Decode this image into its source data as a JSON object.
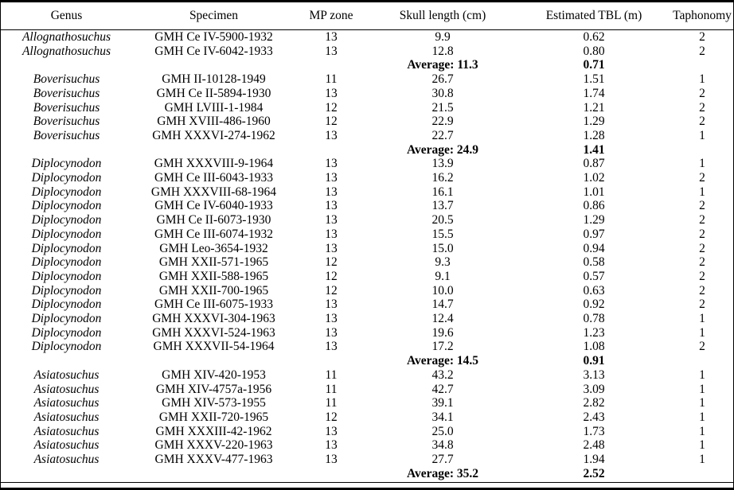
{
  "table": {
    "columns": [
      {
        "label": "Genus"
      },
      {
        "label": "Specimen"
      },
      {
        "label": "MP zone"
      },
      {
        "label": "Skull length (cm)"
      },
      {
        "label": "Estimated TBL (m)"
      },
      {
        "label": "Taphonomy"
      }
    ],
    "sections": [
      {
        "genus": "Allognathosuchus",
        "rows": [
          {
            "specimen": "GMH Ce IV-5900-1932",
            "mp_zone": "13",
            "skull_length_cm": "9.9",
            "estimated_tbl_m": "0.62",
            "taphonomy": "2"
          },
          {
            "specimen": "GMH Ce IV-6042-1933",
            "mp_zone": "13",
            "skull_length_cm": "12.8",
            "estimated_tbl_m": "0.80",
            "taphonomy": "2"
          }
        ],
        "average": {
          "skull_length_label": "Average: 11.3",
          "estimated_tbl_m": "0.71"
        }
      },
      {
        "genus": "Boverisuchus",
        "rows": [
          {
            "specimen": "GMH II-10128-1949",
            "mp_zone": "11",
            "skull_length_cm": "26.7",
            "estimated_tbl_m": "1.51",
            "taphonomy": "1"
          },
          {
            "specimen": "GMH Ce II-5894-1930",
            "mp_zone": "13",
            "skull_length_cm": "30.8",
            "estimated_tbl_m": "1.74",
            "taphonomy": "2"
          },
          {
            "specimen": "GMH LVIII-1-1984",
            "mp_zone": "12",
            "skull_length_cm": "21.5",
            "estimated_tbl_m": "1.21",
            "taphonomy": "2"
          },
          {
            "specimen": "GMH XVIII-486-1960",
            "mp_zone": "12",
            "skull_length_cm": "22.9",
            "estimated_tbl_m": "1.29",
            "taphonomy": "2"
          },
          {
            "specimen": "GMH XXXVI-274-1962",
            "mp_zone": "13",
            "skull_length_cm": "22.7",
            "estimated_tbl_m": "1.28",
            "taphonomy": "1"
          }
        ],
        "average": {
          "skull_length_label": "Average: 24.9",
          "estimated_tbl_m": "1.41"
        }
      },
      {
        "genus": "Diplocynodon",
        "rows": [
          {
            "specimen": "GMH XXXVIII-9-1964",
            "mp_zone": "13",
            "skull_length_cm": "13.9",
            "estimated_tbl_m": "0.87",
            "taphonomy": "1"
          },
          {
            "specimen": "GMH Ce III-6043-1933",
            "mp_zone": "13",
            "skull_length_cm": "16.2",
            "estimated_tbl_m": "1.02",
            "taphonomy": "2"
          },
          {
            "specimen": "GMH XXXVIII-68-1964",
            "mp_zone": "13",
            "skull_length_cm": "16.1",
            "estimated_tbl_m": "1.01",
            "taphonomy": "1"
          },
          {
            "specimen": "GMH Ce IV-6040-1933",
            "mp_zone": "13",
            "skull_length_cm": "13.7",
            "estimated_tbl_m": "0.86",
            "taphonomy": "2"
          },
          {
            "specimen": "GMH Ce II-6073-1930",
            "mp_zone": "13",
            "skull_length_cm": "20.5",
            "estimated_tbl_m": "1.29",
            "taphonomy": "2"
          },
          {
            "specimen": "GMH Ce III-6074-1932",
            "mp_zone": "13",
            "skull_length_cm": "15.5",
            "estimated_tbl_m": "0.97",
            "taphonomy": "2"
          },
          {
            "specimen": "GMH Leo-3654-1932",
            "mp_zone": "13",
            "skull_length_cm": "15.0",
            "estimated_tbl_m": "0.94",
            "taphonomy": "2"
          },
          {
            "specimen": "GMH XXII-571-1965",
            "mp_zone": "12",
            "skull_length_cm": "9.3",
            "estimated_tbl_m": "0.58",
            "taphonomy": "2"
          },
          {
            "specimen": "GMH XXII-588-1965",
            "mp_zone": "12",
            "skull_length_cm": "9.1",
            "estimated_tbl_m": "0.57",
            "taphonomy": "2"
          },
          {
            "specimen": "GMH XXII-700-1965",
            "mp_zone": "12",
            "skull_length_cm": "10.0",
            "estimated_tbl_m": "0.63",
            "taphonomy": "2"
          },
          {
            "specimen": "GMH Ce III-6075-1933",
            "mp_zone": "13",
            "skull_length_cm": "14.7",
            "estimated_tbl_m": "0.92",
            "taphonomy": "2"
          },
          {
            "specimen": "GMH XXXVI-304-1963",
            "mp_zone": "13",
            "skull_length_cm": "12.4",
            "estimated_tbl_m": "0.78",
            "taphonomy": "1"
          },
          {
            "specimen": "GMH XXXVI-524-1963",
            "mp_zone": "13",
            "skull_length_cm": "19.6",
            "estimated_tbl_m": "1.23",
            "taphonomy": "1"
          },
          {
            "specimen": "GMH XXXVII-54-1964",
            "mp_zone": "13",
            "skull_length_cm": "17.2",
            "estimated_tbl_m": "1.08",
            "taphonomy": "2"
          }
        ],
        "average": {
          "skull_length_label": "Average: 14.5",
          "estimated_tbl_m": "0.91"
        }
      },
      {
        "genus": "Asiatosuchus",
        "rows": [
          {
            "specimen": "GMH XIV-420-1953",
            "mp_zone": "11",
            "skull_length_cm": "43.2",
            "estimated_tbl_m": "3.13",
            "taphonomy": "1"
          },
          {
            "specimen": "GMH XIV-4757a-1956",
            "mp_zone": "11",
            "skull_length_cm": "42.7",
            "estimated_tbl_m": "3.09",
            "taphonomy": "1"
          },
          {
            "specimen": "GMH XIV-573-1955",
            "mp_zone": "11",
            "skull_length_cm": "39.1",
            "estimated_tbl_m": "2.82",
            "taphonomy": "1"
          },
          {
            "specimen": "GMH XXII-720-1965",
            "mp_zone": "12",
            "skull_length_cm": "34.1",
            "estimated_tbl_m": "2.43",
            "taphonomy": "1"
          },
          {
            "specimen": "GMH XXXIII-42-1962",
            "mp_zone": "13",
            "skull_length_cm": "25.0",
            "estimated_tbl_m": "1.73",
            "taphonomy": "1"
          },
          {
            "specimen": "GMH XXXV-220-1963",
            "mp_zone": "13",
            "skull_length_cm": "34.8",
            "estimated_tbl_m": "2.48",
            "taphonomy": "1"
          },
          {
            "specimen": "GMH XXXV-477-1963",
            "mp_zone": "13",
            "skull_length_cm": "27.7",
            "estimated_tbl_m": "1.94",
            "taphonomy": "1"
          }
        ],
        "average": {
          "skull_length_label": "Average: 35.2",
          "estimated_tbl_m": "2.52"
        }
      }
    ]
  }
}
